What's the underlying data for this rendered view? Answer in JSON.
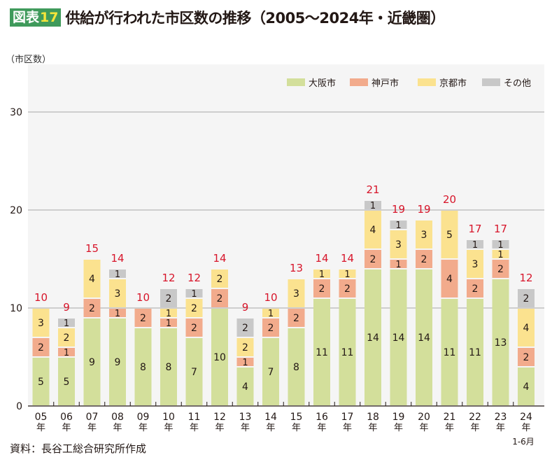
{
  "figure": {
    "badge_label": "図表",
    "badge_number": "17",
    "title": "供給が行われた市区数の推移（2005〜2024年・近畿圏）",
    "unit_label": "（市区数）",
    "source": "資料：長谷工総合研究所作成"
  },
  "chart_data": {
    "type": "bar",
    "stacked": true,
    "title": "供給が行われた市区数の推移（2005〜2024年・近畿圏）",
    "xlabel": "",
    "ylabel": "市区数",
    "ylim": [
      0,
      30
    ],
    "yticks": [
      0,
      10,
      20,
      30
    ],
    "grid": true,
    "legend_position": "top-right",
    "categories": [
      "05",
      "06",
      "07",
      "08",
      "09",
      "10",
      "11",
      "12",
      "13",
      "14",
      "15",
      "16",
      "17",
      "18",
      "19",
      "20",
      "21",
      "22",
      "23",
      "24"
    ],
    "category_suffix": "年",
    "category_notes": {
      "24": "1-6月"
    },
    "series": [
      {
        "name": "大阪市",
        "color": "#d3df9b",
        "values": [
          5,
          5,
          9,
          9,
          8,
          8,
          7,
          10,
          4,
          7,
          8,
          11,
          11,
          14,
          14,
          14,
          11,
          11,
          13,
          4
        ]
      },
      {
        "name": "神戸市",
        "color": "#f2ab8c",
        "values": [
          2,
          1,
          2,
          1,
          2,
          1,
          2,
          2,
          1,
          2,
          2,
          2,
          2,
          2,
          1,
          2,
          4,
          2,
          2,
          2
        ]
      },
      {
        "name": "京都市",
        "color": "#fbe28f",
        "values": [
          3,
          2,
          4,
          3,
          0,
          1,
          2,
          2,
          2,
          1,
          3,
          1,
          1,
          4,
          3,
          3,
          5,
          3,
          1,
          4
        ]
      },
      {
        "name": "その他",
        "color": "#c8c8c8",
        "values": [
          0,
          1,
          0,
          1,
          0,
          2,
          1,
          0,
          2,
          0,
          0,
          0,
          0,
          1,
          1,
          0,
          0,
          1,
          1,
          2
        ]
      }
    ],
    "totals": [
      10,
      9,
      15,
      14,
      10,
      12,
      12,
      14,
      9,
      10,
      13,
      14,
      14,
      21,
      19,
      19,
      20,
      17,
      17,
      12
    ],
    "total_label_color": "#d7152a"
  }
}
